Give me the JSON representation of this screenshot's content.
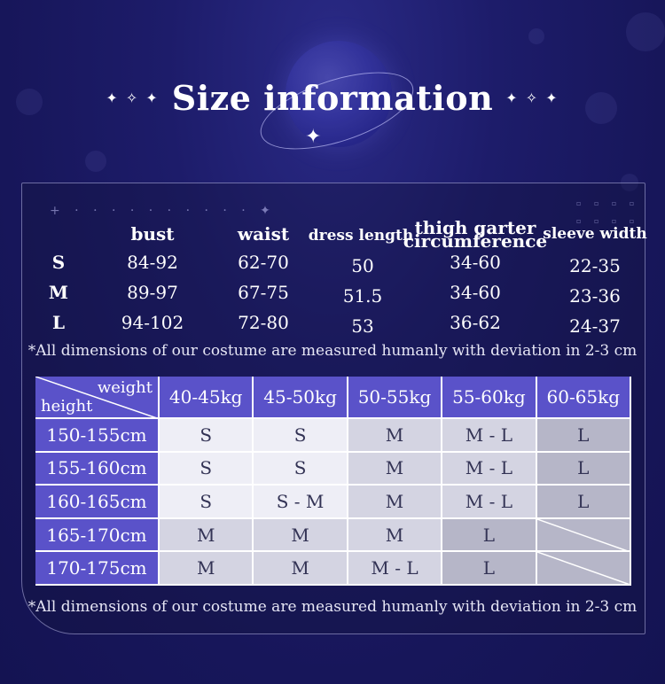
{
  "title": "Size information",
  "sparkles_left": "✦ ✧ ✦",
  "sparkles_right": "✦ ✧ ✦",
  "measurements": {
    "headers": {
      "bust": "bust",
      "waist": "waist",
      "dress_length": "dress length",
      "thigh_line1": "thigh garter",
      "thigh_line2": "circumference",
      "sleeve": "sleeve width"
    },
    "rows": [
      {
        "size": "S",
        "bust": "84-92",
        "waist": "62-70",
        "dress_length": "50",
        "thigh": "34-60",
        "sleeve": "22-35"
      },
      {
        "size": "M",
        "bust": "89-97",
        "waist": "67-75",
        "dress_length": "51.5",
        "thigh": "34-60",
        "sleeve": "23-36"
      },
      {
        "size": "L",
        "bust": "94-102",
        "waist": "72-80",
        "dress_length": "53",
        "thigh": "36-62",
        "sleeve": "24-37"
      }
    ]
  },
  "note": "*All dimensions of our costume are measured humanly with deviation in 2-3 cm",
  "size_chart": {
    "corner_weight": "weight",
    "corner_height": "height",
    "weights": [
      "40-45kg",
      "45-50kg",
      "50-55kg",
      "55-60kg",
      "60-65kg"
    ],
    "rows": [
      {
        "height": "150-155cm",
        "cells": [
          "S",
          "S",
          "M",
          "M - L",
          "L"
        ]
      },
      {
        "height": "155-160cm",
        "cells": [
          "S",
          "S",
          "M",
          "M - L",
          "L"
        ]
      },
      {
        "height": "160-165cm",
        "cells": [
          "S",
          "S - M",
          "M",
          "M - L",
          "L"
        ]
      },
      {
        "height": "165-170cm",
        "cells": [
          "M",
          "M",
          "M",
          "L",
          ""
        ]
      },
      {
        "height": "170-175cm",
        "cells": [
          "M",
          "M",
          "M - L",
          "L",
          ""
        ]
      }
    ]
  },
  "colors": {
    "background": "#1d1c6a",
    "header": "#5a52c9",
    "cell_light": "#eeeef6",
    "cell_gray": "#b6b6c8"
  }
}
